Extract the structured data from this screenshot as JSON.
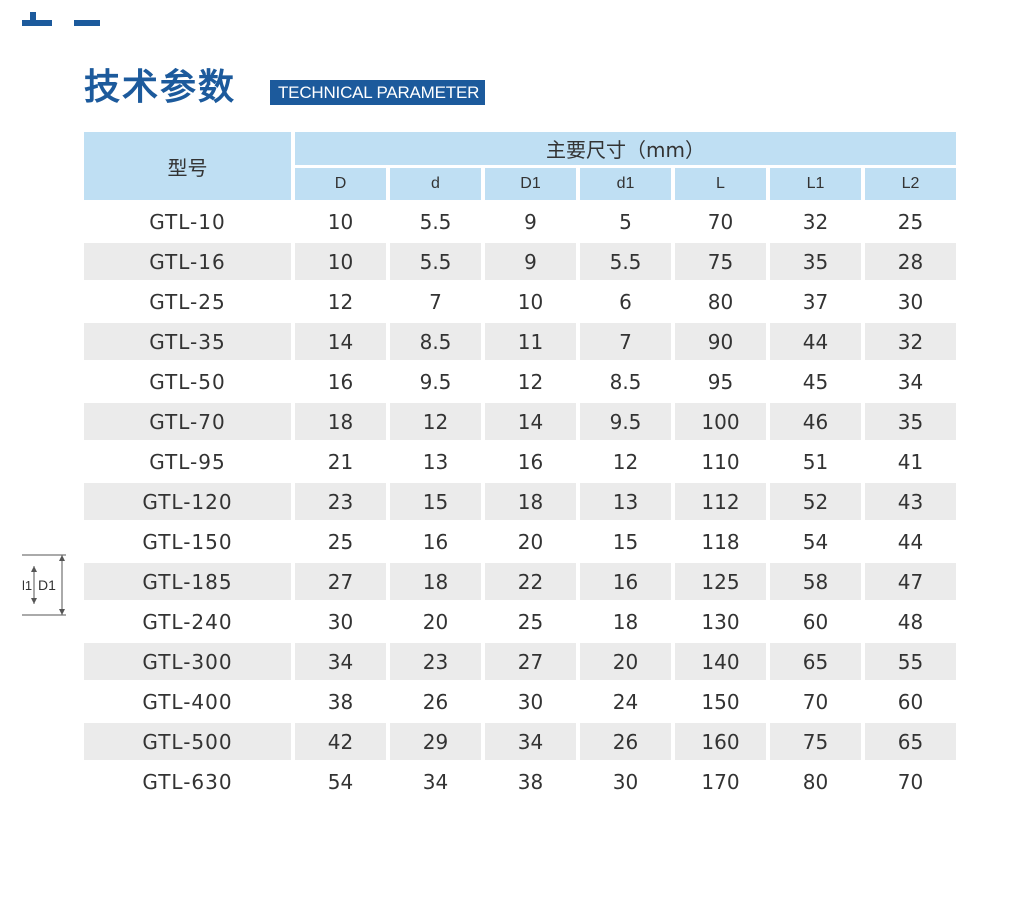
{
  "title": {
    "zh": "技术参数",
    "en": "TECHNICAL PARAMETER"
  },
  "table": {
    "model_header": "型号",
    "group_header": "主要尺寸（mm）",
    "columns": [
      "D",
      "d",
      "D1",
      "d1",
      "L",
      "L1",
      "L2"
    ],
    "rows": [
      {
        "model": "GTL-10",
        "values": [
          "10",
          "5.5",
          "9",
          "5",
          "70",
          "32",
          "25"
        ]
      },
      {
        "model": "GTL-16",
        "values": [
          "10",
          "5.5",
          "9",
          "5.5",
          "75",
          "35",
          "28"
        ]
      },
      {
        "model": "GTL-25",
        "values": [
          "12",
          "7",
          "10",
          "6",
          "80",
          "37",
          "30"
        ]
      },
      {
        "model": "GTL-35",
        "values": [
          "14",
          "8.5",
          "11",
          "7",
          "90",
          "44",
          "32"
        ]
      },
      {
        "model": "GTL-50",
        "values": [
          "16",
          "9.5",
          "12",
          "8.5",
          "95",
          "45",
          "34"
        ]
      },
      {
        "model": "GTL-70",
        "values": [
          "18",
          "12",
          "14",
          "9.5",
          "100",
          "46",
          "35"
        ]
      },
      {
        "model": "GTL-95",
        "values": [
          "21",
          "13",
          "16",
          "12",
          "110",
          "51",
          "41"
        ]
      },
      {
        "model": "GTL-120",
        "values": [
          "23",
          "15",
          "18",
          "13",
          "112",
          "52",
          "43"
        ]
      },
      {
        "model": "GTL-150",
        "values": [
          "25",
          "16",
          "20",
          "15",
          "118",
          "54",
          "44"
        ]
      },
      {
        "model": "GTL-185",
        "values": [
          "27",
          "18",
          "22",
          "16",
          "125",
          "58",
          "47"
        ]
      },
      {
        "model": "GTL-240",
        "values": [
          "30",
          "20",
          "25",
          "18",
          "130",
          "60",
          "48"
        ]
      },
      {
        "model": "GTL-300",
        "values": [
          "34",
          "23",
          "27",
          "20",
          "140",
          "65",
          "55"
        ]
      },
      {
        "model": "GTL-400",
        "values": [
          "38",
          "26",
          "30",
          "24",
          "150",
          "70",
          "60"
        ]
      },
      {
        "model": "GTL-500",
        "values": [
          "42",
          "29",
          "34",
          "26",
          "160",
          "75",
          "65"
        ]
      },
      {
        "model": "GTL-630",
        "values": [
          "54",
          "34",
          "38",
          "30",
          "170",
          "80",
          "70"
        ]
      }
    ]
  },
  "diagram": {
    "label_left": "l1",
    "label_right": "D1"
  },
  "colors": {
    "brand_blue": "#1c5a9c",
    "header_bg": "#bfdff3",
    "stripe_bg": "#ebebeb",
    "text": "#333333"
  }
}
